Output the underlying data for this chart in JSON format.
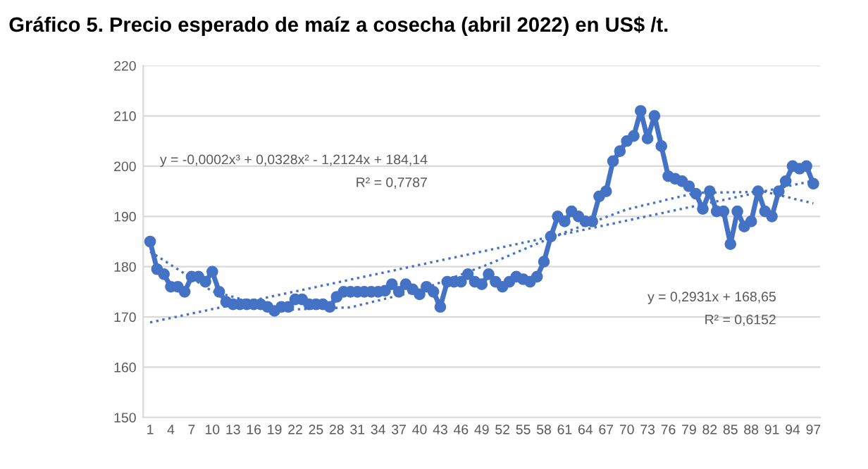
{
  "chart_data": {
    "type": "line",
    "title": "Gráfico 5. Precio esperado de maíz a cosecha (abril 2022) en US$ /t.",
    "xlim": [
      0,
      98
    ],
    "xticks": [
      1,
      4,
      7,
      10,
      13,
      16,
      19,
      22,
      25,
      28,
      31,
      34,
      37,
      40,
      43,
      46,
      49,
      52,
      55,
      58,
      61,
      64,
      67,
      70,
      73,
      76,
      79,
      82,
      85,
      88,
      91,
      94,
      97
    ],
    "ylim": [
      150,
      220
    ],
    "yticks": [
      150,
      160,
      170,
      180,
      190,
      200,
      210,
      220
    ],
    "grid": "y",
    "legend": false,
    "series": [
      {
        "color": "#4472c4",
        "marker": "circle",
        "line_style": "solid",
        "x": [
          1,
          2,
          3,
          4,
          5,
          6,
          7,
          8,
          9,
          10,
          11,
          12,
          13,
          14,
          15,
          16,
          17,
          18,
          19,
          20,
          21,
          22,
          23,
          24,
          25,
          26,
          27,
          28,
          29,
          30,
          31,
          32,
          33,
          34,
          35,
          36,
          37,
          38,
          39,
          40,
          41,
          42,
          43,
          44,
          45,
          46,
          47,
          48,
          49,
          50,
          51,
          52,
          53,
          54,
          55,
          56,
          57,
          58,
          59,
          60,
          61,
          62,
          63,
          64,
          65,
          66,
          67,
          68,
          69,
          70,
          71,
          72,
          73,
          74,
          75,
          76,
          77,
          78,
          79,
          80,
          81,
          82,
          83,
          84,
          85,
          86,
          87,
          88,
          89,
          90,
          91,
          92,
          93,
          94,
          95,
          96,
          97
        ],
        "values": [
          185,
          179.5,
          178.5,
          176,
          176,
          175,
          178,
          178,
          177,
          179,
          175,
          173,
          172.5,
          172.5,
          172.5,
          172.5,
          172.5,
          172,
          171.2,
          172,
          172,
          173.5,
          173.5,
          172.5,
          172.5,
          172.5,
          172,
          174,
          175,
          175,
          175,
          175,
          175,
          175,
          175.2,
          176.5,
          175,
          176.5,
          175.5,
          174.5,
          176,
          175,
          172,
          177,
          177,
          177,
          178.5,
          177,
          176.5,
          178.5,
          177,
          176,
          177,
          178,
          177.5,
          177,
          178,
          181,
          186,
          190,
          189,
          191,
          190,
          189,
          189,
          194,
          195,
          201,
          203,
          205,
          206,
          211,
          205.5,
          210,
          204,
          198,
          197.5,
          197,
          196,
          194.5,
          191.5,
          195,
          191,
          191,
          184.5,
          191,
          188,
          189,
          195,
          191,
          190,
          195,
          197,
          200,
          199.5,
          200,
          196.5
        ]
      },
      {
        "type": "line",
        "color": "#4472c4",
        "marker": "none",
        "line_style": "dotted",
        "x": [
          1,
          10,
          20,
          30,
          40,
          50,
          60,
          70,
          80,
          90,
          97
        ],
        "values": [
          183,
          175.1,
          171.4,
          171.9,
          175.3,
          180.5,
          186.3,
          191.4,
          194.7,
          194.9,
          192.6
        ]
      },
      {
        "type": "line",
        "color": "#4472c4",
        "marker": "none",
        "line_style": "dotted",
        "x": [
          1,
          97
        ],
        "values": [
          168.9,
          197.1
        ]
      }
    ],
    "annotations": [
      "y = -0,0002x³ + 0,0328x² - 1,2124x + 184,14",
      "R² = 0,7787",
      "y = 0,2931x + 168,65",
      "R² = 0,6152"
    ]
  }
}
